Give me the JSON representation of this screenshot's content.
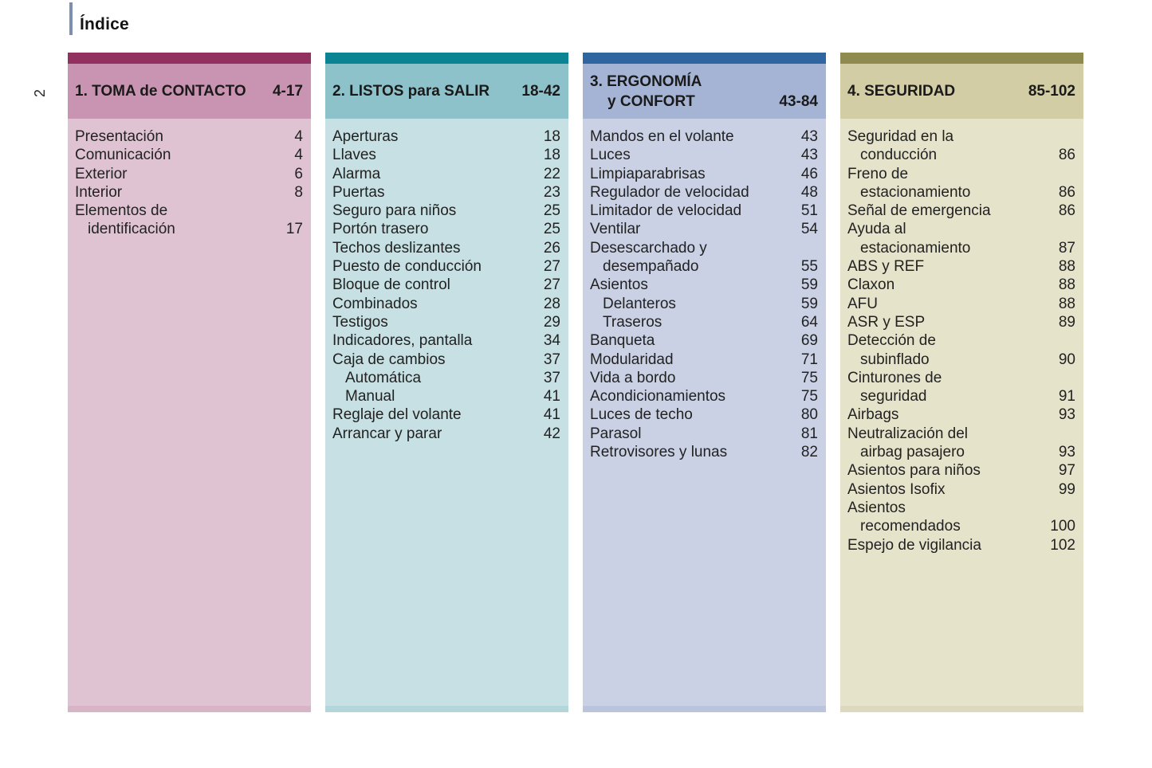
{
  "page": {
    "title": "Índice",
    "page_number": "2",
    "accent_bar_color": "#7C8FAF"
  },
  "sections": [
    {
      "id": "toma-de-contacto",
      "title": "1. TOMA de CONTACTO",
      "title2": null,
      "pages": "4-17",
      "colors": {
        "strip": "#92305F",
        "band": "#C994B2",
        "body": "#DFC3D2"
      },
      "items": [
        {
          "label": "Presentación",
          "label2": null,
          "page": "4",
          "sub": false
        },
        {
          "label": "Comunicación",
          "label2": null,
          "page": "4",
          "sub": false
        },
        {
          "label": "Exterior",
          "label2": null,
          "page": "6",
          "sub": false
        },
        {
          "label": "Interior",
          "label2": null,
          "page": "8",
          "sub": false
        },
        {
          "label": "Elementos de",
          "label2": "identificación",
          "page": "17",
          "sub": false
        }
      ]
    },
    {
      "id": "listos-para-salir",
      "title": "2. LISTOS para SALIR",
      "title2": null,
      "pages": "18-42",
      "colors": {
        "strip": "#0A8492",
        "band": "#8EC2CB",
        "body": "#C6E0E3"
      },
      "items": [
        {
          "label": "Aperturas",
          "label2": null,
          "page": "18",
          "sub": false
        },
        {
          "label": "Llaves",
          "label2": null,
          "page": "18",
          "sub": false
        },
        {
          "label": "Alarma",
          "label2": null,
          "page": "22",
          "sub": false
        },
        {
          "label": "Puertas",
          "label2": null,
          "page": "23",
          "sub": false
        },
        {
          "label": "Seguro para niños",
          "label2": null,
          "page": "25",
          "sub": false
        },
        {
          "label": "Portón trasero",
          "label2": null,
          "page": "25",
          "sub": false
        },
        {
          "label": "Techos deslizantes",
          "label2": null,
          "page": "26",
          "sub": false
        },
        {
          "label": "Puesto de conducción",
          "label2": null,
          "page": "27",
          "sub": false
        },
        {
          "label": "Bloque de control",
          "label2": null,
          "page": "27",
          "sub": false
        },
        {
          "label": "Combinados",
          "label2": null,
          "page": "28",
          "sub": false
        },
        {
          "label": "Testigos",
          "label2": null,
          "page": "29",
          "sub": false
        },
        {
          "label": "Indicadores, pantalla",
          "label2": null,
          "page": "34",
          "sub": false
        },
        {
          "label": "Caja de cambios",
          "label2": null,
          "page": "37",
          "sub": false
        },
        {
          "label": "Automática",
          "label2": null,
          "page": "37",
          "sub": true
        },
        {
          "label": "Manual",
          "label2": null,
          "page": "41",
          "sub": true
        },
        {
          "label": "Reglaje del volante",
          "label2": null,
          "page": "41",
          "sub": false
        },
        {
          "label": "Arrancar y parar",
          "label2": null,
          "page": "42",
          "sub": false
        }
      ]
    },
    {
      "id": "ergonomia-y-confort",
      "title": "3. ERGONOMÍA",
      "title2": "y CONFORT",
      "pages": "43-84",
      "colors": {
        "strip": "#30669F",
        "band": "#A5B4D5",
        "body": "#CAD1E5"
      },
      "items": [
        {
          "label": "Mandos en el volante",
          "label2": null,
          "page": "43",
          "sub": false
        },
        {
          "label": "Luces",
          "label2": null,
          "page": "43",
          "sub": false
        },
        {
          "label": "Limpiaparabrisas",
          "label2": null,
          "page": "46",
          "sub": false
        },
        {
          "label": "Regulador de velocidad",
          "label2": null,
          "page": "48",
          "sub": false
        },
        {
          "label": "Limitador de velocidad",
          "label2": null,
          "page": "51",
          "sub": false
        },
        {
          "label": "Ventilar",
          "label2": null,
          "page": "54",
          "sub": false
        },
        {
          "label": "Desescarchado y",
          "label2": "desempañado",
          "page": "55",
          "sub": false
        },
        {
          "label": "Asientos",
          "label2": null,
          "page": "59",
          "sub": false
        },
        {
          "label": "Delanteros",
          "label2": null,
          "page": "59",
          "sub": true
        },
        {
          "label": "Traseros",
          "label2": null,
          "page": "64",
          "sub": true
        },
        {
          "label": "Banqueta",
          "label2": null,
          "page": "69",
          "sub": false
        },
        {
          "label": "Modularidad",
          "label2": null,
          "page": "71",
          "sub": false
        },
        {
          "label": "Vida a bordo",
          "label2": null,
          "page": "75",
          "sub": false
        },
        {
          "label": "Acondicionamientos",
          "label2": null,
          "page": "75",
          "sub": false
        },
        {
          "label": "Luces de techo",
          "label2": null,
          "page": "80",
          "sub": false
        },
        {
          "label": "Parasol",
          "label2": null,
          "page": "81",
          "sub": false
        },
        {
          "label": "Retrovisores y lunas",
          "label2": null,
          "page": "82",
          "sub": false
        }
      ]
    },
    {
      "id": "seguridad",
      "title": "4. SEGURIDAD",
      "title2": null,
      "pages": "85-102",
      "colors": {
        "strip": "#8F8A4F",
        "band": "#D3CDA5",
        "body": "#E6E3CB"
      },
      "items": [
        {
          "label": "Seguridad en la",
          "label2": "conducción",
          "page": "86",
          "sub": false
        },
        {
          "label": "Freno de",
          "label2": "estacionamiento",
          "page": "86",
          "sub": false
        },
        {
          "label": "Señal de emergencia",
          "label2": null,
          "page": "86",
          "sub": false
        },
        {
          "label": "Ayuda al",
          "label2": "estacionamiento",
          "page": "87",
          "sub": false
        },
        {
          "label": "ABS y REF",
          "label2": null,
          "page": "88",
          "sub": false
        },
        {
          "label": "Claxon",
          "label2": null,
          "page": "88",
          "sub": false
        },
        {
          "label": "AFU",
          "label2": null,
          "page": "88",
          "sub": false
        },
        {
          "label": "ASR y ESP",
          "label2": null,
          "page": "89",
          "sub": false
        },
        {
          "label": "Detección de",
          "label2": "subinflado",
          "page": "90",
          "sub": false
        },
        {
          "label": "Cinturones de",
          "label2": "seguridad",
          "page": "91",
          "sub": false
        },
        {
          "label": "Airbags",
          "label2": null,
          "page": "93",
          "sub": false
        },
        {
          "label": "Neutralización del",
          "label2": "airbag pasajero",
          "page": "93",
          "sub": false
        },
        {
          "label": "Asientos para niños",
          "label2": null,
          "page": "97",
          "sub": false
        },
        {
          "label": "Asientos Isofix",
          "label2": null,
          "page": "99",
          "sub": false
        },
        {
          "label": "Asientos",
          "label2": "recomendados",
          "page": "100",
          "sub": false
        },
        {
          "label": "Espejo de vigilancia",
          "label2": null,
          "page": "102",
          "sub": false
        }
      ]
    }
  ]
}
